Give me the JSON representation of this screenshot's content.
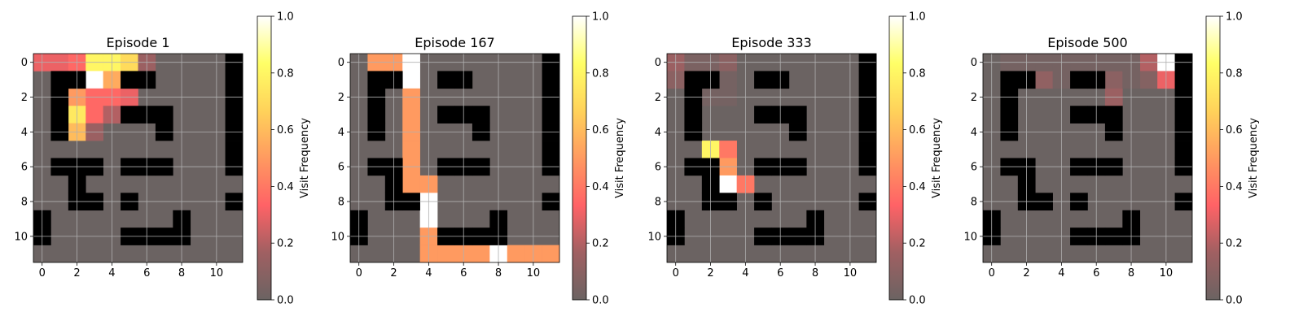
{
  "colorbar": {
    "label": "Visit Frequency",
    "ticks": [
      "0.0",
      "0.2",
      "0.4",
      "0.6",
      "0.8",
      "1.0"
    ],
    "tick_values": [
      0,
      0.2,
      0.4,
      0.6,
      0.8,
      1.0
    ],
    "stops": [
      "#6b6362",
      "#a06062",
      "#ff6266",
      "#ff9a60",
      "#ffd25a",
      "#ffff66",
      "#ffffff"
    ]
  },
  "maze_color": "#000000",
  "chart_data": [
    {
      "type": "heatmap",
      "title": "Episode 1",
      "grid_size": [
        12,
        12
      ],
      "xticks": [
        "0",
        "2",
        "4",
        "6",
        "8",
        "10"
      ],
      "yticks": [
        "0",
        "2",
        "4",
        "6",
        "8",
        "10"
      ],
      "vlim": [
        0,
        1
      ],
      "grid": true,
      "walls": [
        [
          1,
          1
        ],
        [
          2,
          1
        ],
        [
          5,
          1
        ],
        [
          6,
          1
        ],
        [
          11,
          0
        ],
        [
          11,
          1
        ],
        [
          11,
          2
        ],
        [
          11,
          3
        ],
        [
          11,
          4
        ],
        [
          11,
          5
        ],
        [
          11,
          6
        ],
        [
          1,
          2
        ],
        [
          1,
          3
        ],
        [
          1,
          4
        ],
        [
          5,
          3
        ],
        [
          6,
          3
        ],
        [
          7,
          3
        ],
        [
          7,
          4
        ],
        [
          1,
          6
        ],
        [
          2,
          6
        ],
        [
          3,
          6
        ],
        [
          5,
          6
        ],
        [
          6,
          6
        ],
        [
          7,
          6
        ],
        [
          2,
          7
        ],
        [
          2,
          8
        ],
        [
          3,
          8
        ],
        [
          5,
          8
        ],
        [
          11,
          8
        ],
        [
          0,
          9
        ],
        [
          0,
          10
        ],
        [
          8,
          9
        ],
        [
          5,
          10
        ],
        [
          6,
          10
        ],
        [
          7,
          10
        ],
        [
          8,
          10
        ]
      ],
      "visits": [
        {
          "x": 0,
          "y": 0,
          "v": 0.3
        },
        {
          "x": 1,
          "y": 0,
          "v": 0.3
        },
        {
          "x": 2,
          "y": 0,
          "v": 0.35
        },
        {
          "x": 3,
          "y": 0,
          "v": 0.8
        },
        {
          "x": 4,
          "y": 0,
          "v": 0.8
        },
        {
          "x": 5,
          "y": 0,
          "v": 0.7
        },
        {
          "x": 6,
          "y": 0,
          "v": 0.15
        },
        {
          "x": 3,
          "y": 1,
          "v": 1.0
        },
        {
          "x": 4,
          "y": 1,
          "v": 0.55
        },
        {
          "x": 2,
          "y": 2,
          "v": 0.5
        },
        {
          "x": 3,
          "y": 2,
          "v": 0.35
        },
        {
          "x": 4,
          "y": 2,
          "v": 0.35
        },
        {
          "x": 5,
          "y": 2,
          "v": 0.3
        },
        {
          "x": 2,
          "y": 3,
          "v": 0.75
        },
        {
          "x": 3,
          "y": 3,
          "v": 0.35
        },
        {
          "x": 4,
          "y": 3,
          "v": 0.2
        },
        {
          "x": 2,
          "y": 4,
          "v": 0.6
        },
        {
          "x": 3,
          "y": 4,
          "v": 0.15
        }
      ]
    },
    {
      "type": "heatmap",
      "title": "Episode 167",
      "grid_size": [
        12,
        12
      ],
      "xticks": [
        "0",
        "2",
        "4",
        "6",
        "8",
        "10"
      ],
      "yticks": [
        "0",
        "2",
        "4",
        "6",
        "8",
        "10"
      ],
      "vlim": [
        0,
        1
      ],
      "grid": true,
      "walls": [
        [
          11,
          0
        ],
        [
          1,
          1
        ],
        [
          2,
          1
        ],
        [
          5,
          1
        ],
        [
          6,
          1
        ],
        [
          11,
          1
        ],
        [
          1,
          2
        ],
        [
          11,
          2
        ],
        [
          1,
          3
        ],
        [
          5,
          3
        ],
        [
          6,
          3
        ],
        [
          7,
          3
        ],
        [
          11,
          3
        ],
        [
          1,
          4
        ],
        [
          7,
          4
        ],
        [
          11,
          4
        ],
        [
          11,
          5
        ],
        [
          1,
          6
        ],
        [
          2,
          6
        ],
        [
          5,
          6
        ],
        [
          6,
          6
        ],
        [
          7,
          6
        ],
        [
          11,
          6
        ],
        [
          2,
          7
        ],
        [
          2,
          8
        ],
        [
          3,
          8
        ],
        [
          11,
          8
        ],
        [
          0,
          9
        ],
        [
          8,
          9
        ],
        [
          0,
          10
        ],
        [
          5,
          10
        ],
        [
          6,
          10
        ],
        [
          7,
          10
        ],
        [
          8,
          10
        ]
      ],
      "visits": [
        {
          "x": 1,
          "y": 0,
          "v": 0.5
        },
        {
          "x": 2,
          "y": 0,
          "v": 0.5
        },
        {
          "x": 3,
          "y": 0,
          "v": 1.0
        },
        {
          "x": 3,
          "y": 1,
          "v": 1.0
        },
        {
          "x": 3,
          "y": 2,
          "v": 0.5
        },
        {
          "x": 3,
          "y": 3,
          "v": 0.5
        },
        {
          "x": 3,
          "y": 4,
          "v": 0.5
        },
        {
          "x": 3,
          "y": 5,
          "v": 0.5
        },
        {
          "x": 3,
          "y": 6,
          "v": 0.5
        },
        {
          "x": 3,
          "y": 7,
          "v": 0.5
        },
        {
          "x": 4,
          "y": 7,
          "v": 0.5
        },
        {
          "x": 4,
          "y": 8,
          "v": 1.0
        },
        {
          "x": 4,
          "y": 9,
          "v": 1.0
        },
        {
          "x": 4,
          "y": 10,
          "v": 0.5
        },
        {
          "x": 4,
          "y": 11,
          "v": 0.5
        },
        {
          "x": 5,
          "y": 11,
          "v": 0.5
        },
        {
          "x": 6,
          "y": 11,
          "v": 0.5
        },
        {
          "x": 7,
          "y": 11,
          "v": 0.5
        },
        {
          "x": 8,
          "y": 11,
          "v": 1.0
        },
        {
          "x": 9,
          "y": 11,
          "v": 0.5
        },
        {
          "x": 10,
          "y": 11,
          "v": 0.5
        },
        {
          "x": 11,
          "y": 11,
          "v": 0.5
        }
      ]
    },
    {
      "type": "heatmap",
      "title": "Episode 333",
      "grid_size": [
        12,
        12
      ],
      "xticks": [
        "0",
        "2",
        "4",
        "6",
        "8",
        "10"
      ],
      "yticks": [
        "0",
        "2",
        "4",
        "6",
        "8",
        "10"
      ],
      "vlim": [
        0,
        1
      ],
      "grid": true,
      "walls": [
        [
          11,
          0
        ],
        [
          1,
          1
        ],
        [
          2,
          1
        ],
        [
          5,
          1
        ],
        [
          6,
          1
        ],
        [
          11,
          1
        ],
        [
          1,
          2
        ],
        [
          11,
          2
        ],
        [
          1,
          3
        ],
        [
          5,
          3
        ],
        [
          6,
          3
        ],
        [
          7,
          3
        ],
        [
          11,
          3
        ],
        [
          1,
          4
        ],
        [
          7,
          4
        ],
        [
          11,
          4
        ],
        [
          11,
          5
        ],
        [
          1,
          6
        ],
        [
          5,
          6
        ],
        [
          6,
          6
        ],
        [
          7,
          6
        ],
        [
          11,
          6
        ],
        [
          2,
          6
        ],
        [
          2,
          7
        ],
        [
          2,
          8
        ],
        [
          3,
          8
        ],
        [
          5,
          8
        ],
        [
          11,
          8
        ],
        [
          0,
          9
        ],
        [
          8,
          9
        ],
        [
          0,
          10
        ],
        [
          5,
          10
        ],
        [
          6,
          10
        ],
        [
          7,
          10
        ],
        [
          8,
          10
        ]
      ],
      "visits": [
        {
          "x": 0,
          "y": 0,
          "v": 0.15
        },
        {
          "x": 1,
          "y": 0,
          "v": 0.05
        },
        {
          "x": 2,
          "y": 0,
          "v": 0.05
        },
        {
          "x": 3,
          "y": 0,
          "v": 0.1
        },
        {
          "x": 0,
          "y": 1,
          "v": 0.1
        },
        {
          "x": 3,
          "y": 1,
          "v": 0.03
        },
        {
          "x": 2,
          "y": 2,
          "v": 0.03
        },
        {
          "x": 3,
          "y": 2,
          "v": 0.03
        },
        {
          "x": 2,
          "y": 5,
          "v": 0.8
        },
        {
          "x": 3,
          "y": 5,
          "v": 0.4
        },
        {
          "x": 3,
          "y": 6,
          "v": 0.5
        },
        {
          "x": 3,
          "y": 7,
          "v": 1.0
        },
        {
          "x": 4,
          "y": 7,
          "v": 0.4
        }
      ]
    },
    {
      "type": "heatmap",
      "title": "Episode 500",
      "grid_size": [
        12,
        12
      ],
      "xticks": [
        "0",
        "2",
        "4",
        "6",
        "8",
        "10"
      ],
      "yticks": [
        "0",
        "2",
        "4",
        "6",
        "8",
        "10"
      ],
      "vlim": [
        0,
        1
      ],
      "grid": true,
      "walls": [
        [
          11,
          0
        ],
        [
          1,
          1
        ],
        [
          2,
          1
        ],
        [
          5,
          1
        ],
        [
          6,
          1
        ],
        [
          11,
          1
        ],
        [
          1,
          2
        ],
        [
          11,
          2
        ],
        [
          1,
          3
        ],
        [
          5,
          3
        ],
        [
          6,
          3
        ],
        [
          7,
          3
        ],
        [
          11,
          3
        ],
        [
          1,
          4
        ],
        [
          7,
          4
        ],
        [
          11,
          4
        ],
        [
          11,
          5
        ],
        [
          1,
          6
        ],
        [
          2,
          6
        ],
        [
          5,
          6
        ],
        [
          6,
          6
        ],
        [
          7,
          6
        ],
        [
          11,
          6
        ],
        [
          2,
          7
        ],
        [
          2,
          8
        ],
        [
          3,
          8
        ],
        [
          5,
          8
        ],
        [
          11,
          8
        ],
        [
          0,
          9
        ],
        [
          8,
          9
        ],
        [
          0,
          10
        ],
        [
          5,
          10
        ],
        [
          6,
          10
        ],
        [
          7,
          10
        ],
        [
          8,
          10
        ]
      ],
      "visits": [
        {
          "x": 9,
          "y": 0,
          "v": 0.2
        },
        {
          "x": 10,
          "y": 0,
          "v": 1.0
        },
        {
          "x": 3,
          "y": 1,
          "v": 0.12
        },
        {
          "x": 7,
          "y": 1,
          "v": 0.1
        },
        {
          "x": 9,
          "y": 1,
          "v": 0.08
        },
        {
          "x": 10,
          "y": 1,
          "v": 0.3
        },
        {
          "x": 7,
          "y": 2,
          "v": 0.15
        },
        {
          "x": 1,
          "y": 0,
          "v": 0.03
        },
        {
          "x": 2,
          "y": 0,
          "v": 0.03
        },
        {
          "x": 3,
          "y": 0,
          "v": 0.03
        },
        {
          "x": 4,
          "y": 0,
          "v": 0.03
        },
        {
          "x": 5,
          "y": 0,
          "v": 0.03
        },
        {
          "x": 6,
          "y": 0,
          "v": 0.03
        },
        {
          "x": 7,
          "y": 0,
          "v": 0.03
        },
        {
          "x": 8,
          "y": 0,
          "v": 0.03
        },
        {
          "x": 4,
          "y": 1,
          "v": 0.03
        },
        {
          "x": 8,
          "y": 1,
          "v": 0.03
        }
      ]
    }
  ]
}
